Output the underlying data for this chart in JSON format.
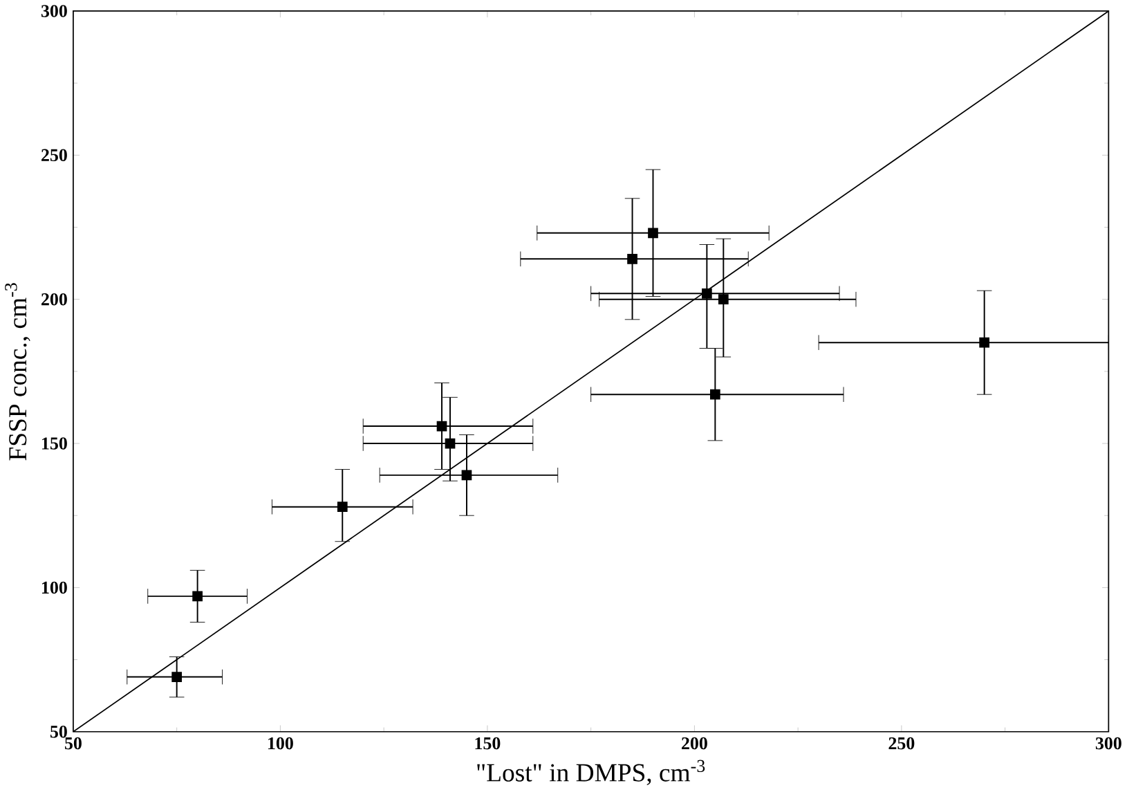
{
  "chart_data": {
    "type": "scatter",
    "xlabel": "\"Lost\" in DMPS, cm$^{-3}$",
    "ylabel": "FSSP conc., cm$^{-3}$",
    "xlim": [
      50,
      300
    ],
    "ylim": [
      50,
      300
    ],
    "xticks": [
      50,
      100,
      150,
      200,
      250,
      300
    ],
    "yticks": [
      50,
      100,
      150,
      200,
      250,
      300
    ],
    "grid": false,
    "series": [
      {
        "color": "#000000",
        "marker": "square",
        "x": [
          75,
          80,
          115,
          139,
          141,
          145,
          185,
          190,
          203,
          207,
          205,
          270
        ],
        "values": [
          69,
          97,
          128,
          156,
          150,
          139,
          214,
          223,
          202,
          200,
          167,
          185
        ],
        "xerrors": [
          [
            63,
            86
          ],
          [
            68,
            92
          ],
          [
            98,
            132
          ],
          [
            120,
            161
          ],
          [
            120,
            161
          ],
          [
            124,
            167
          ],
          [
            158,
            213
          ],
          [
            162,
            218
          ],
          [
            175,
            235
          ],
          [
            177,
            239
          ],
          [
            175,
            236
          ],
          [
            230,
            300
          ]
        ],
        "errors": [
          [
            62,
            76
          ],
          [
            88,
            106
          ],
          [
            116,
            141
          ],
          [
            141,
            171
          ],
          [
            137,
            166
          ],
          [
            125,
            153
          ],
          [
            193,
            235
          ],
          [
            201,
            245
          ],
          [
            183,
            219
          ],
          [
            180,
            221
          ],
          [
            151,
            183
          ],
          [
            167,
            203
          ]
        ]
      },
      {
        "type": "line",
        "color": "#000000",
        "marker": "none",
        "line_style": "solid",
        "x": [
          50,
          300
        ],
        "values": [
          50,
          300
        ]
      }
    ]
  }
}
